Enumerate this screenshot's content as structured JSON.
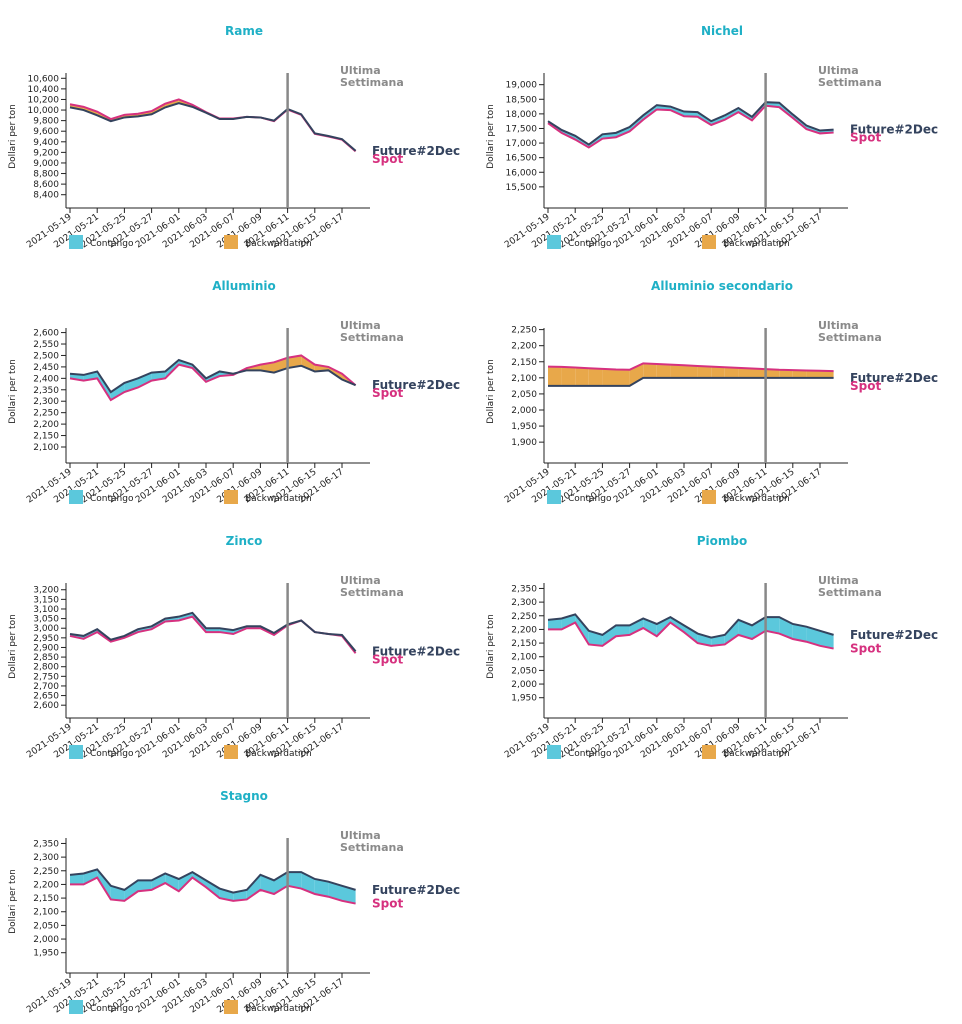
{
  "chart_data": [
    {
      "type": "line",
      "title": "Rame",
      "y_label": "Dollari per ton",
      "annotation": [
        "Ultima",
        "Settimana"
      ],
      "categories": [
        "2021-05-19",
        null,
        "2021-05-21",
        null,
        "2021-05-25",
        null,
        "2021-05-27",
        null,
        "2021-06-01",
        null,
        "2021-06-03",
        null,
        "2021-06-07",
        null,
        "2021-06-09",
        null,
        "2021-06-11",
        null,
        "2021-06-15",
        null,
        "2021-06-17",
        null
      ],
      "series": [
        {
          "name": "Future#2Dec",
          "color": "#34435e",
          "values": [
            10050,
            10000,
            9900,
            9790,
            9860,
            9880,
            9920,
            10050,
            10130,
            10060,
            9950,
            9830,
            9830,
            9870,
            9860,
            9800,
            10020,
            9920,
            9560,
            9510,
            9450,
            9230
          ]
        },
        {
          "name": "Spot",
          "color": "#d6317f",
          "values": [
            10110,
            10060,
            9970,
            9830,
            9910,
            9930,
            9980,
            10120,
            10200,
            10100,
            9960,
            9840,
            9840,
            9870,
            9860,
            9790,
            10010,
            9910,
            9550,
            9500,
            9440,
            9220
          ]
        }
      ],
      "ylim": [
        8300,
        10700
      ],
      "yticks": [
        {
          "value": 8400,
          "label": "8,400"
        },
        {
          "value": 8600,
          "label": "8,600"
        },
        {
          "value": 8800,
          "label": "8,800"
        },
        {
          "value": 9000,
          "label": "9,000"
        },
        {
          "value": 9200,
          "label": "9,200"
        },
        {
          "value": 9400,
          "label": "9,400"
        },
        {
          "value": 9600,
          "label": "9,600"
        },
        {
          "value": 9800,
          "label": "9,800"
        },
        {
          "value": 10000,
          "label": "10,000"
        },
        {
          "value": 10200,
          "label": "10,200"
        },
        {
          "value": 10400,
          "label": "10,400"
        },
        {
          "value": 10600,
          "label": "10,600"
        }
      ],
      "legend": [
        {
          "name": "Contango",
          "color": "#5bc8dc"
        },
        {
          "name": "Backwardation",
          "color": "#e8a84a"
        }
      ]
    },
    {
      "type": "line",
      "title": "Nichel",
      "y_label": "Dollari per ton",
      "annotation": [
        "Ultima",
        "Settimana"
      ],
      "categories": [
        "2021-05-19",
        null,
        "2021-05-21",
        null,
        "2021-05-25",
        null,
        "2021-05-27",
        null,
        "2021-06-01",
        null,
        "2021-06-03",
        null,
        "2021-06-07",
        null,
        "2021-06-09",
        null,
        "2021-06-11",
        null,
        "2021-06-15",
        null,
        "2021-06-17",
        null
      ],
      "series": [
        {
          "name": "Future#2Dec",
          "color": "#34435e",
          "values": [
            17750,
            17450,
            17250,
            16950,
            17300,
            17350,
            17550,
            17950,
            18300,
            18250,
            18080,
            18060,
            17750,
            17950,
            18200,
            17900,
            18400,
            18380,
            17980,
            17600,
            17430,
            17460
          ]
        },
        {
          "name": "Spot",
          "color": "#d6317f",
          "values": [
            17680,
            17350,
            17120,
            16850,
            17150,
            17200,
            17400,
            17800,
            18150,
            18130,
            17920,
            17900,
            17620,
            17800,
            18060,
            17780,
            18280,
            18230,
            17860,
            17480,
            17330,
            17360
          ]
        }
      ],
      "ylim": [
        15050,
        19400
      ],
      "yticks": [
        {
          "value": 15500,
          "label": "15,500"
        },
        {
          "value": 16000,
          "label": "16,000"
        },
        {
          "value": 16500,
          "label": "16,500"
        },
        {
          "value": 17000,
          "label": "17,000"
        },
        {
          "value": 17500,
          "label": "17,500"
        },
        {
          "value": 18000,
          "label": "18,000"
        },
        {
          "value": 18500,
          "label": "18,500"
        },
        {
          "value": 19000,
          "label": "19,000"
        }
      ],
      "legend": [
        {
          "name": "Contango",
          "color": "#5bc8dc"
        },
        {
          "name": "Backwardation",
          "color": "#e8a84a"
        }
      ]
    },
    {
      "type": "line",
      "title": "Alluminio",
      "y_label": "Dollari per ton",
      "annotation": [
        "Ultima",
        "Settimana"
      ],
      "categories": [
        "2021-05-19",
        null,
        "2021-05-21",
        null,
        "2021-05-25",
        null,
        "2021-05-27",
        null,
        "2021-06-01",
        null,
        "2021-06-03",
        null,
        "2021-06-07",
        null,
        "2021-06-09",
        null,
        "2021-06-11",
        null,
        "2021-06-15",
        null,
        "2021-06-17",
        null
      ],
      "series": [
        {
          "name": "Future#2Dec",
          "color": "#34435e",
          "values": [
            2420,
            2415,
            2430,
            2340,
            2380,
            2400,
            2425,
            2430,
            2480,
            2460,
            2400,
            2430,
            2420,
            2435,
            2435,
            2425,
            2445,
            2455,
            2430,
            2435,
            2395,
            2370
          ]
        },
        {
          "name": "Spot",
          "color": "#d6317f",
          "values": [
            2400,
            2390,
            2400,
            2305,
            2340,
            2360,
            2390,
            2400,
            2460,
            2445,
            2385,
            2410,
            2415,
            2445,
            2460,
            2470,
            2490,
            2500,
            2460,
            2450,
            2420,
            2370
          ]
        }
      ],
      "ylim": [
        2065,
        2620
      ],
      "yticks": [
        {
          "value": 2100,
          "label": "2,100"
        },
        {
          "value": 2150,
          "label": "2,150"
        },
        {
          "value": 2200,
          "label": "2,200"
        },
        {
          "value": 2250,
          "label": "2,250"
        },
        {
          "value": 2300,
          "label": "2,300"
        },
        {
          "value": 2350,
          "label": "2,350"
        },
        {
          "value": 2400,
          "label": "2,400"
        },
        {
          "value": 2450,
          "label": "2,450"
        },
        {
          "value": 2500,
          "label": "2,500"
        },
        {
          "value": 2550,
          "label": "2,550"
        },
        {
          "value": 2600,
          "label": "2,600"
        }
      ],
      "legend": [
        {
          "name": "Contango",
          "color": "#5bc8dc"
        },
        {
          "name": "Backwardation",
          "color": "#e8a84a"
        }
      ]
    },
    {
      "type": "line",
      "title": "Alluminio secondario",
      "y_label": "Dollari per ton",
      "annotation": [
        "Ultima",
        "Settimana"
      ],
      "categories": [
        "2021-05-19",
        null,
        "2021-05-21",
        null,
        "2021-05-25",
        null,
        "2021-05-27",
        null,
        "2021-06-01",
        null,
        "2021-06-03",
        null,
        "2021-06-07",
        null,
        "2021-06-09",
        null,
        "2021-06-11",
        null,
        "2021-06-15",
        null,
        "2021-06-17",
        null
      ],
      "series": [
        {
          "name": "Future#2Dec",
          "color": "#34435e",
          "values": [
            2075,
            2075,
            2075,
            2075,
            2075,
            2075,
            2075,
            2100,
            2100,
            2100,
            2100,
            2100,
            2100,
            2100,
            2100,
            2100,
            2100,
            2100,
            2100,
            2100,
            2100,
            2100
          ]
        },
        {
          "name": "Spot",
          "color": "#d6317f",
          "values": [
            2135,
            2134,
            2132,
            2130,
            2128,
            2126,
            2125,
            2145,
            2143,
            2141,
            2139,
            2137,
            2135,
            2133,
            2131,
            2129,
            2127,
            2125,
            2124,
            2123,
            2122,
            2121
          ]
        }
      ],
      "ylim": [
        1860,
        2255
      ],
      "yticks": [
        {
          "value": 1900,
          "label": "1,900"
        },
        {
          "value": 1950,
          "label": "1,950"
        },
        {
          "value": 2000,
          "label": "2,000"
        },
        {
          "value": 2050,
          "label": "2,050"
        },
        {
          "value": 2100,
          "label": "2,100"
        },
        {
          "value": 2150,
          "label": "2,150"
        },
        {
          "value": 2200,
          "label": "2,200"
        },
        {
          "value": 2250,
          "label": "2,250"
        }
      ],
      "legend": [
        {
          "name": "Contango",
          "color": "#5bc8dc"
        },
        {
          "name": "Backwardation",
          "color": "#e8a84a"
        }
      ]
    },
    {
      "type": "line",
      "title": "Zinco",
      "y_label": "Dollari per ton",
      "annotation": [
        "Ultima",
        "Settimana"
      ],
      "categories": [
        "2021-05-19",
        null,
        "2021-05-21",
        null,
        "2021-05-25",
        null,
        "2021-05-27",
        null,
        "2021-06-01",
        null,
        "2021-06-03",
        null,
        "2021-06-07",
        null,
        "2021-06-09",
        null,
        "2021-06-11",
        null,
        "2021-06-15",
        null,
        "2021-06-17",
        null
      ],
      "series": [
        {
          "name": "Future#2Dec",
          "color": "#34435e",
          "values": [
            2970,
            2960,
            2995,
            2940,
            2960,
            2995,
            3010,
            3050,
            3060,
            3080,
            3000,
            3000,
            2990,
            3010,
            3010,
            2975,
            3020,
            3040,
            2980,
            2970,
            2965,
            2880
          ]
        },
        {
          "name": "Spot",
          "color": "#d6317f",
          "values": [
            2960,
            2945,
            2980,
            2930,
            2950,
            2980,
            2995,
            3035,
            3040,
            3060,
            2980,
            2980,
            2970,
            3000,
            3000,
            2965,
            3015,
            3040,
            2980,
            2970,
            2960,
            2870
          ]
        }
      ],
      "ylim": [
        2575,
        3235
      ],
      "yticks": [
        {
          "value": 2600,
          "label": "2,600"
        },
        {
          "value": 2650,
          "label": "2,650"
        },
        {
          "value": 2700,
          "label": "2,700"
        },
        {
          "value": 2750,
          "label": "2,750"
        },
        {
          "value": 2800,
          "label": "2,800"
        },
        {
          "value": 2850,
          "label": "2,850"
        },
        {
          "value": 2900,
          "label": "2,900"
        },
        {
          "value": 2950,
          "label": "2,950"
        },
        {
          "value": 3000,
          "label": "3,000"
        },
        {
          "value": 3050,
          "label": "3,050"
        },
        {
          "value": 3100,
          "label": "3,100"
        },
        {
          "value": 3150,
          "label": "3,150"
        },
        {
          "value": 3200,
          "label": "3,200"
        }
      ],
      "legend": [
        {
          "name": "Contango",
          "color": "#5bc8dc"
        },
        {
          "name": "Backwardation",
          "color": "#e8a84a"
        }
      ]
    },
    {
      "type": "line",
      "title": "Piombo",
      "y_label": "Dollari per ton",
      "annotation": [
        "Ultima",
        "Settimana"
      ],
      "categories": [
        "2021-05-19",
        null,
        "2021-05-21",
        null,
        "2021-05-25",
        null,
        "2021-05-27",
        null,
        "2021-06-01",
        null,
        "2021-06-03",
        null,
        "2021-06-07",
        null,
        "2021-06-09",
        null,
        "2021-06-11",
        null,
        "2021-06-15",
        null,
        "2021-06-17",
        null
      ],
      "series": [
        {
          "name": "Future#2Dec",
          "color": "#34435e",
          "values": [
            2235,
            2240,
            2255,
            2195,
            2180,
            2215,
            2215,
            2240,
            2220,
            2245,
            2215,
            2185,
            2170,
            2180,
            2235,
            2215,
            2245,
            2245,
            2220,
            2210,
            2195,
            2180
          ]
        },
        {
          "name": "Spot",
          "color": "#d6317f",
          "values": [
            2200,
            2200,
            2225,
            2145,
            2140,
            2175,
            2180,
            2205,
            2175,
            2225,
            2190,
            2150,
            2140,
            2145,
            2180,
            2165,
            2195,
            2185,
            2165,
            2155,
            2140,
            2130
          ]
        }
      ],
      "ylim": [
        1905,
        2370
      ],
      "yticks": [
        {
          "value": 1950,
          "label": "1,950"
        },
        {
          "value": 2000,
          "label": "2,000"
        },
        {
          "value": 2050,
          "label": "2,050"
        },
        {
          "value": 2100,
          "label": "2,100"
        },
        {
          "value": 2150,
          "label": "2,150"
        },
        {
          "value": 2200,
          "label": "2,200"
        },
        {
          "value": 2250,
          "label": "2,250"
        },
        {
          "value": 2300,
          "label": "2,300"
        },
        {
          "value": 2350,
          "label": "2,350"
        }
      ],
      "legend": [
        {
          "name": "Contango",
          "color": "#5bc8dc"
        },
        {
          "name": "Backwardation",
          "color": "#e8a84a"
        }
      ]
    },
    {
      "type": "line",
      "title": "Stagno",
      "y_label": "Dollari per ton",
      "annotation": [
        "Ultima",
        "Settimana"
      ],
      "categories": [
        "2021-05-19",
        null,
        "2021-05-21",
        null,
        "2021-05-25",
        null,
        "2021-05-27",
        null,
        "2021-06-01",
        null,
        "2021-06-03",
        null,
        "2021-06-07",
        null,
        "2021-06-09",
        null,
        "2021-06-11",
        null,
        "2021-06-15",
        null,
        "2021-06-17",
        null
      ],
      "series": [
        {
          "name": "Future#2Dec",
          "color": "#34435e",
          "values": [
            2235,
            2240,
            2255,
            2195,
            2180,
            2215,
            2215,
            2240,
            2220,
            2245,
            2215,
            2185,
            2170,
            2180,
            2235,
            2215,
            2245,
            2245,
            2220,
            2210,
            2195,
            2180
          ]
        },
        {
          "name": "Spot",
          "color": "#d6317f",
          "values": [
            2200,
            2200,
            2225,
            2145,
            2140,
            2175,
            2180,
            2205,
            2175,
            2225,
            2190,
            2150,
            2140,
            2145,
            2180,
            2165,
            2195,
            2185,
            2165,
            2155,
            2140,
            2130
          ]
        }
      ],
      "ylim": [
        1905,
        2370
      ],
      "yticks": [
        {
          "value": 1950,
          "label": "1,950"
        },
        {
          "value": 2000,
          "label": "2,000"
        },
        {
          "value": 2050,
          "label": "2,050"
        },
        {
          "value": 2100,
          "label": "2,100"
        },
        {
          "value": 2150,
          "label": "2,150"
        },
        {
          "value": 2200,
          "label": "2,200"
        },
        {
          "value": 2250,
          "label": "2,250"
        },
        {
          "value": 2300,
          "label": "2,300"
        },
        {
          "value": 2350,
          "label": "2,350"
        }
      ],
      "legend": [
        {
          "name": "Contango",
          "color": "#5bc8dc"
        },
        {
          "name": "Backwardation",
          "color": "#e8a84a"
        }
      ]
    }
  ]
}
